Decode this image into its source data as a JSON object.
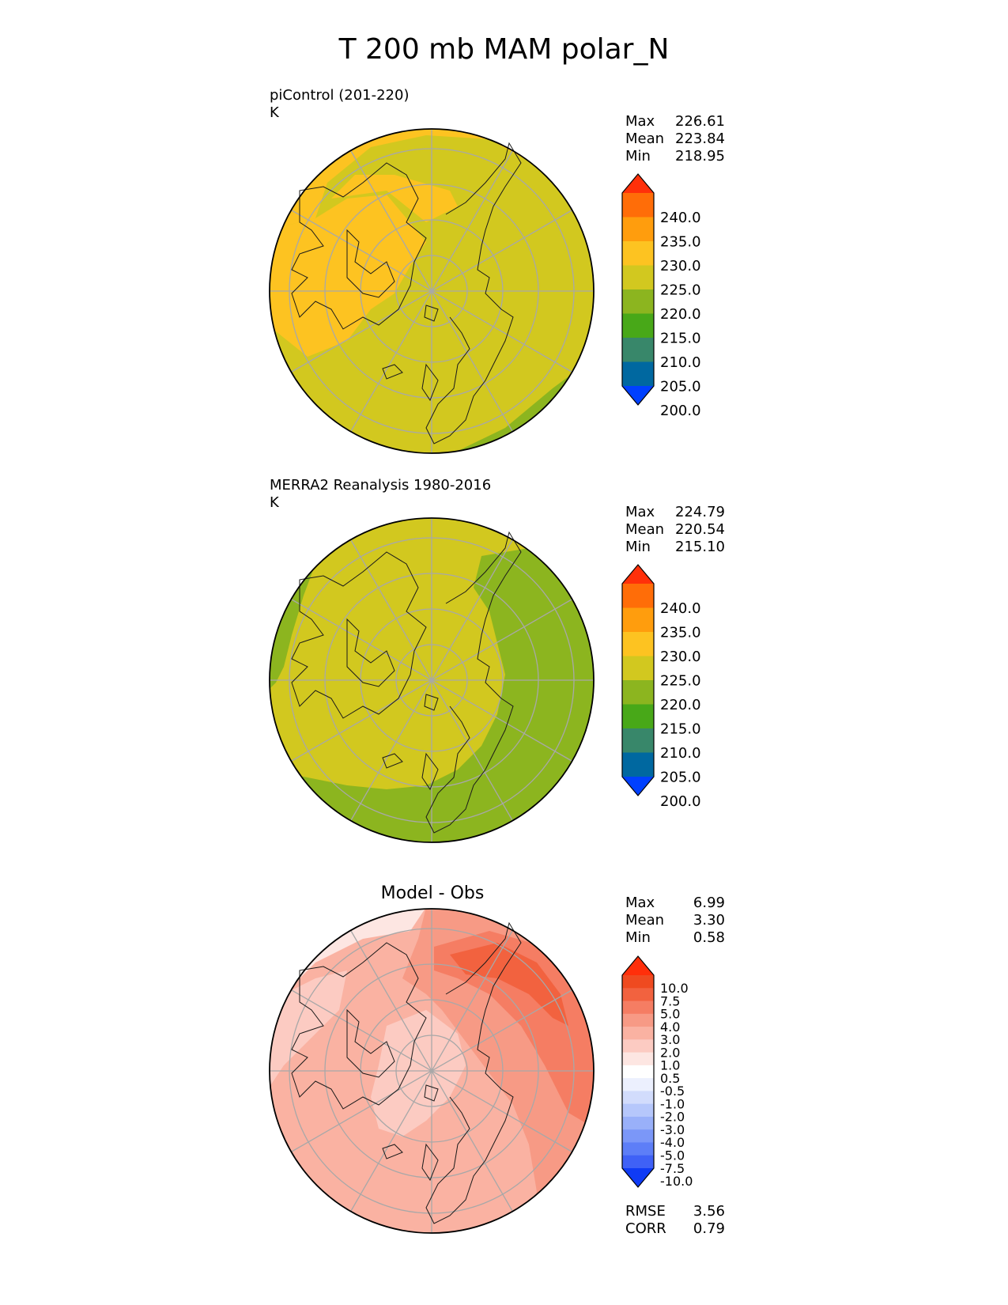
{
  "title": "T 200 mb MAM polar_N",
  "panels": [
    {
      "id": "test",
      "label_line1": "piControl (201-220)",
      "label_line2": "K",
      "stats": [
        {
          "name": "Max",
          "value": "226.61"
        },
        {
          "name": "Mean",
          "value": "223.84"
        },
        {
          "name": "Min",
          "value": "218.95"
        }
      ],
      "colorbar": {
        "labels": [
          "240.0",
          "235.0",
          "230.0",
          "225.0",
          "220.0",
          "215.0",
          "210.0",
          "205.0",
          "200.0"
        ],
        "colors": [
          "#0040ff",
          "#0068a0",
          "#38876a",
          "#48a818",
          "#8cb51f",
          "#d2c81f",
          "#fdc321",
          "#ff9d0d",
          "#ff6d08",
          "#ff300a"
        ]
      }
    },
    {
      "id": "reference",
      "label_line1": "MERRA2 Reanalysis 1980-2016",
      "label_line2": "K",
      "stats": [
        {
          "name": "Max",
          "value": "224.79"
        },
        {
          "name": "Mean",
          "value": "220.54"
        },
        {
          "name": "Min",
          "value": "215.10"
        }
      ],
      "colorbar": {
        "labels": [
          "240.0",
          "235.0",
          "230.0",
          "225.0",
          "220.0",
          "215.0",
          "210.0",
          "205.0",
          "200.0"
        ],
        "colors": [
          "#0040ff",
          "#0068a0",
          "#38876a",
          "#48a818",
          "#8cb51f",
          "#d2c81f",
          "#fdc321",
          "#ff9d0d",
          "#ff6d08",
          "#ff300a"
        ]
      }
    },
    {
      "id": "diff",
      "title": "Model - Obs",
      "stats": [
        {
          "name": "Max",
          "value": "6.99"
        },
        {
          "name": "Mean",
          "value": "3.30"
        },
        {
          "name": "Min",
          "value": "0.58"
        }
      ],
      "metrics": [
        {
          "name": "RMSE",
          "value": "3.56"
        },
        {
          "name": "CORR",
          "value": "0.79"
        }
      ],
      "colorbar": {
        "labels": [
          "10.0",
          "7.5",
          "5.0",
          "4.0",
          "3.0",
          "2.0",
          "1.0",
          "0.5",
          "-0.5",
          "-1.0",
          "-2.0",
          "-3.0",
          "-4.0",
          "-5.0",
          "-7.5",
          "-10.0"
        ],
        "colors": [
          "#0f3bf5",
          "#3f61f6",
          "#5d7ef7",
          "#7b97f8",
          "#99b0f9",
          "#b6c7fb",
          "#d2dcfc",
          "#ecf0fe",
          "#ffffff",
          "#fde6e2",
          "#fccbc2",
          "#fab2a2",
          "#f79a85",
          "#f57d63",
          "#f2623f",
          "#ef4a20",
          "#ff2f0a"
        ]
      }
    }
  ]
}
